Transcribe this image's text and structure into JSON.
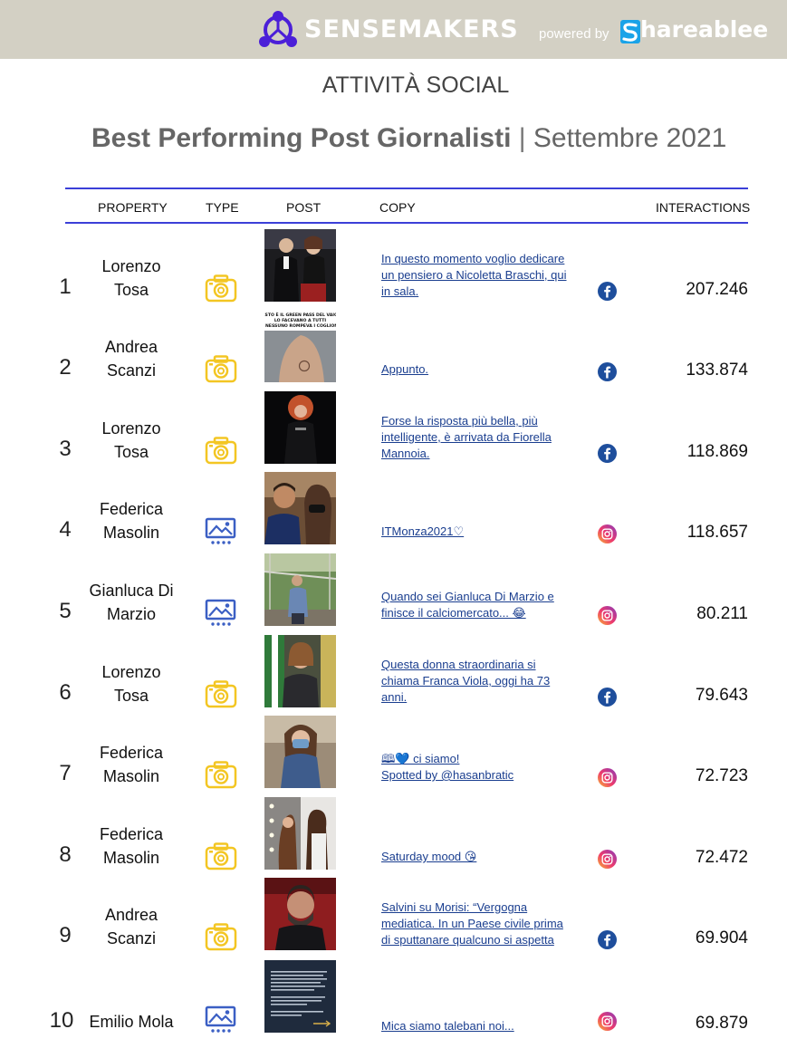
{
  "header": {
    "brand": "SENSEMAKERS",
    "powered_by": "powered by",
    "partner": "hareablee"
  },
  "section_title": "ATTIVITÀ SOCIAL",
  "main_title": {
    "bold": "Best Performing Post Giornalisti",
    "separator": " | ",
    "period": "Settembre 2021"
  },
  "columns": {
    "property": "PROPERTY",
    "type": "TYPE",
    "post": "POST",
    "copy": "COPY",
    "interactions": "INTERACTIONS"
  },
  "colors": {
    "header_band": "#d3d0c4",
    "rule": "#3b3fd8",
    "photo_icon": "#f3c623",
    "carousel_icon": "#3b5fc4",
    "facebook": "#1e4e9c",
    "link": "#1a3e8f"
  },
  "rows": [
    {
      "rank": "1",
      "name_line1": "Lorenzo",
      "name_line2": "Tosa",
      "type": "photo-icon",
      "social": "facebook-icon",
      "copy": [
        "In questo momento voglio dedicare",
        "un pensiero a Nicoletta Braschi, qui",
        "in sala."
      ],
      "interactions": "207.246"
    },
    {
      "rank": "2",
      "name_line1": "Andrea",
      "name_line2": "Scanzi",
      "type": "photo-icon",
      "social": "facebook-icon",
      "copy": [
        "Appunto."
      ],
      "interactions": "133.874",
      "thumb_caption": "QUESTO È IL GREEN PASS DEL VAIOLO. LO FACEVANO A TUTTI E NESSUNO ROMPEVA I COGLIONI"
    },
    {
      "rank": "3",
      "name_line1": "Lorenzo",
      "name_line2": "Tosa",
      "type": "photo-icon",
      "social": "facebook-icon",
      "copy": [
        "Forse la risposta più bella, più",
        "intelligente, è arrivata da Fiorella",
        "Mannoia."
      ],
      "interactions": "118.869"
    },
    {
      "rank": "4",
      "name_line1": "Federica",
      "name_line2": "Masolin",
      "type": "carousel-icon",
      "social": "instagram-icon",
      "copy": [
        "ITMonza2021♡"
      ],
      "interactions": "118.657"
    },
    {
      "rank": "5",
      "name_line1": "Gianluca Di",
      "name_line2": "Marzio",
      "type": "carousel-icon",
      "social": "instagram-icon",
      "copy": [
        "Quando sei Gianluca Di Marzio e",
        "finisce il calciomercato... 😂"
      ],
      "interactions": "80.211"
    },
    {
      "rank": "6",
      "name_line1": "Lorenzo",
      "name_line2": "Tosa",
      "type": "photo-icon",
      "social": "facebook-icon",
      "copy": [
        "Questa donna straordinaria si",
        "chiama Franca Viola, oggi ha 73",
        "anni."
      ],
      "interactions": "79.643"
    },
    {
      "rank": "7",
      "name_line1": "Federica",
      "name_line2": "Masolin",
      "type": "photo-icon",
      "social": "instagram-icon",
      "copy": [
        "🕮💙 ci siamo!",
        "Spotted by @hasanbratic"
      ],
      "interactions": "72.723"
    },
    {
      "rank": "8",
      "name_line1": "Federica",
      "name_line2": "Masolin",
      "type": "photo-icon",
      "social": "instagram-icon",
      "copy": [
        "Saturday mood 😘"
      ],
      "interactions": "72.472"
    },
    {
      "rank": "9",
      "name_line1": "Andrea",
      "name_line2": "Scanzi",
      "type": "photo-icon",
      "social": "facebook-icon",
      "copy": [
        "Salvini su Morisi: “Vergogna",
        "mediatica. In un Paese civile prima",
        "di sputtanare qualcuno si aspetta"
      ],
      "interactions": "69.904"
    },
    {
      "rank": "10",
      "name_line1": "Emilio Mola",
      "name_line2": "",
      "type": "carousel-icon",
      "social": "instagram-icon",
      "copy": [
        "Mica siamo talebani noi..."
      ],
      "interactions": "69.879"
    }
  ]
}
